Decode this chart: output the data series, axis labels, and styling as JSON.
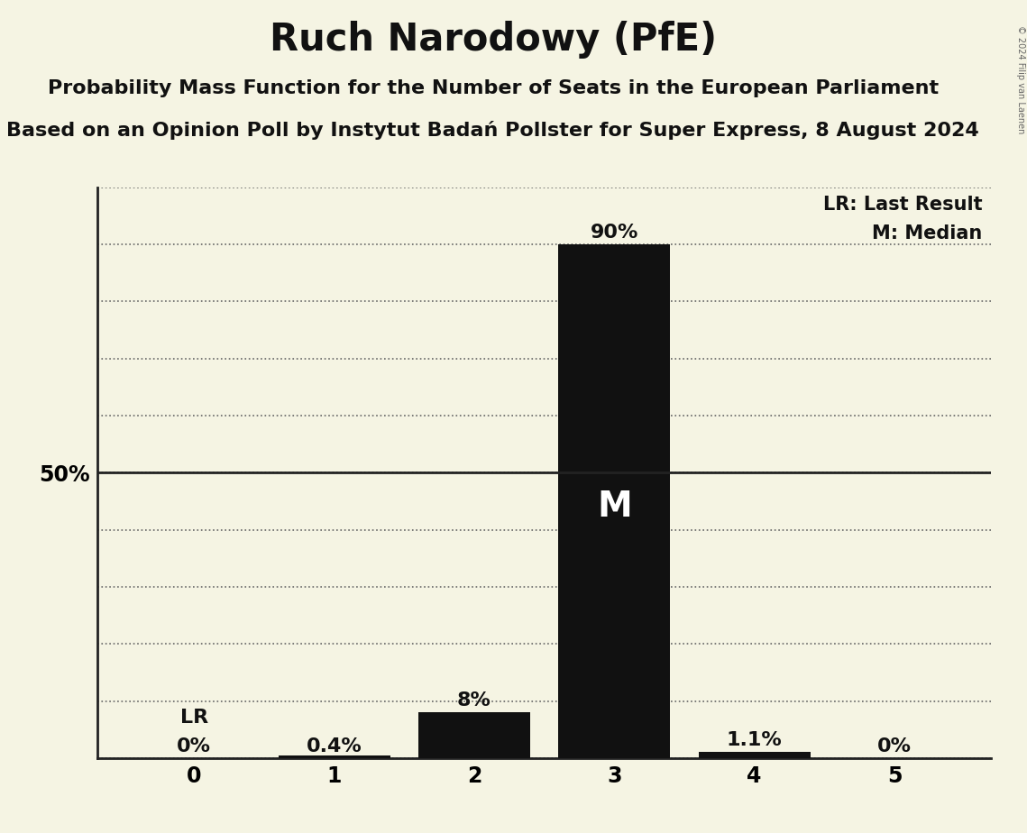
{
  "title": "Ruch Narodowy (PfE)",
  "subtitle1": "Probability Mass Function for the Number of Seats in the European Parliament",
  "subtitle2": "Based on an Opinion Poll by Instytut Badań Pollster for Super Express, 8 August 2024",
  "copyright": "© 2024 Filip van Laenen",
  "seats": [
    0,
    1,
    2,
    3,
    4,
    5
  ],
  "probabilities": [
    0.0,
    0.004,
    0.08,
    0.9,
    0.011,
    0.0
  ],
  "prob_labels": [
    "0%",
    "0.4%",
    "8%",
    "90%",
    "1.1%",
    "0%"
  ],
  "bar_color": "#111111",
  "background_color": "#f5f4e3",
  "last_result_seat": 0,
  "median_seat": 3,
  "ylim": [
    0,
    1.0
  ],
  "yticks": [
    0.0,
    0.1,
    0.2,
    0.3,
    0.4,
    0.5,
    0.6,
    0.7,
    0.8,
    0.9,
    1.0
  ],
  "legend_lr": "LR: Last Result",
  "legend_m": "M: Median",
  "title_fontsize": 30,
  "subtitle1_fontsize": 16,
  "subtitle2_fontsize": 16,
  "bar_label_fontsize": 16,
  "tick_fontsize": 17,
  "legend_fontsize": 15,
  "median_label_fontsize": 28,
  "lr_label_fontsize": 16
}
